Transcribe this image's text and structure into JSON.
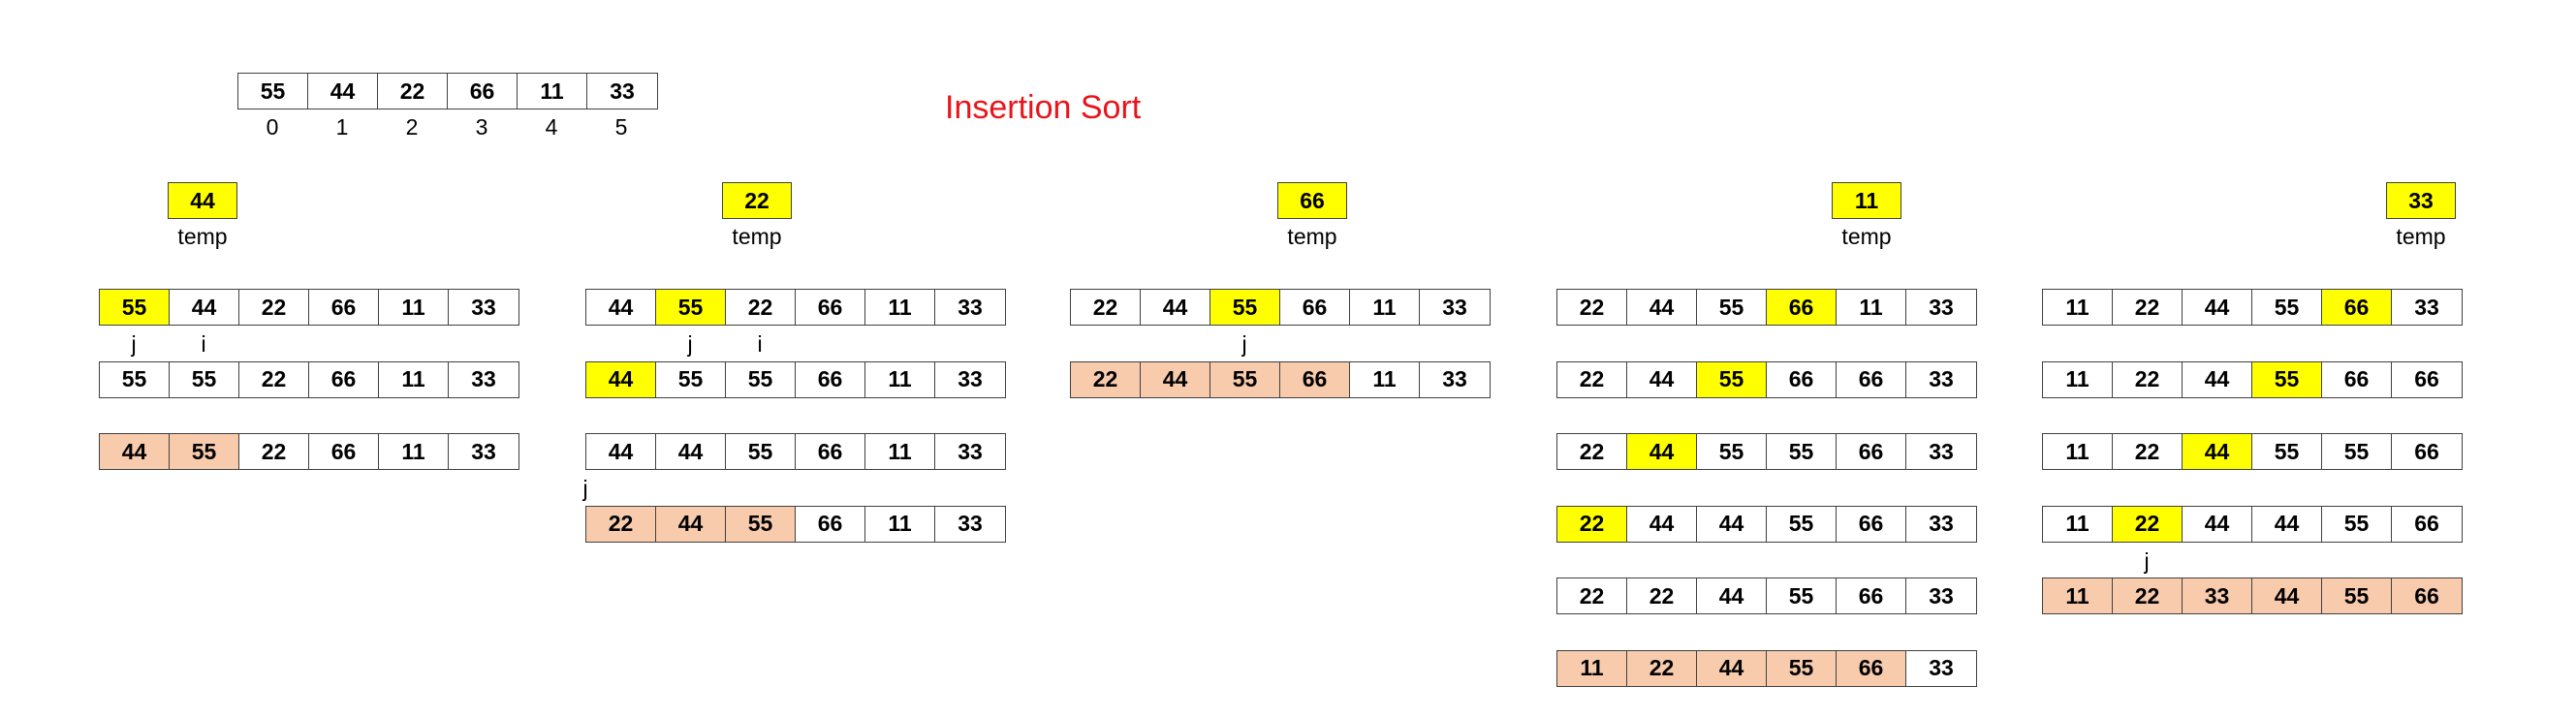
{
  "title": "Insertion Sort",
  "colors": {
    "title": "#e8141a",
    "highlight": "#ffff00",
    "sorted": "#f8cbad",
    "border": "#404040"
  },
  "initial": {
    "values": [
      "55",
      "44",
      "22",
      "66",
      "11",
      "33"
    ],
    "indices": [
      "0",
      "1",
      "2",
      "3",
      "4",
      "5"
    ]
  },
  "temp_label": "temp",
  "steps": [
    {
      "temp": "44",
      "rows": [
        {
          "cells": [
            {
              "v": "55",
              "c": "y"
            },
            {
              "v": "44"
            },
            {
              "v": "22"
            },
            {
              "v": "66"
            },
            {
              "v": "11"
            },
            {
              "v": "33"
            }
          ],
          "markers": [
            {
              "t": "j",
              "col": 0
            },
            {
              "t": "i",
              "col": 1
            }
          ]
        },
        {
          "cells": [
            {
              "v": "55"
            },
            {
              "v": "55"
            },
            {
              "v": "22"
            },
            {
              "v": "66"
            },
            {
              "v": "11"
            },
            {
              "v": "33"
            }
          ]
        },
        {
          "cells": [
            {
              "v": "44",
              "c": "p"
            },
            {
              "v": "55",
              "c": "p"
            },
            {
              "v": "22"
            },
            {
              "v": "66"
            },
            {
              "v": "11"
            },
            {
              "v": "33"
            }
          ]
        }
      ],
      "extra_markers": []
    },
    {
      "temp": "22",
      "rows": [
        {
          "cells": [
            {
              "v": "44"
            },
            {
              "v": "55",
              "c": "y"
            },
            {
              "v": "22"
            },
            {
              "v": "66"
            },
            {
              "v": "11"
            },
            {
              "v": "33"
            }
          ],
          "markers": [
            {
              "t": "j",
              "col": 1
            },
            {
              "t": "i",
              "col": 2
            }
          ]
        },
        {
          "cells": [
            {
              "v": "44",
              "c": "y"
            },
            {
              "v": "55"
            },
            {
              "v": "55"
            },
            {
              "v": "66"
            },
            {
              "v": "11"
            },
            {
              "v": "33"
            }
          ]
        },
        {
          "cells": [
            {
              "v": "44"
            },
            {
              "v": "44"
            },
            {
              "v": "55"
            },
            {
              "v": "66"
            },
            {
              "v": "11"
            },
            {
              "v": "33"
            }
          ]
        },
        {
          "cells": [
            {
              "v": "22",
              "c": "p"
            },
            {
              "v": "44",
              "c": "p"
            },
            {
              "v": "55",
              "c": "p"
            },
            {
              "v": "66"
            },
            {
              "v": "11"
            },
            {
              "v": "33"
            }
          ]
        }
      ],
      "extra_markers": [
        {
          "t": "j",
          "col": -0.5,
          "row": 2
        }
      ]
    },
    {
      "temp": "66",
      "rows": [
        {
          "cells": [
            {
              "v": "22"
            },
            {
              "v": "44"
            },
            {
              "v": "55",
              "c": "y"
            },
            {
              "v": "66"
            },
            {
              "v": "11"
            },
            {
              "v": "33"
            }
          ],
          "markers": [
            {
              "t": "j",
              "col": 2
            }
          ]
        },
        {
          "cells": [
            {
              "v": "22",
              "c": "p"
            },
            {
              "v": "44",
              "c": "p"
            },
            {
              "v": "55",
              "c": "p"
            },
            {
              "v": "66",
              "c": "p"
            },
            {
              "v": "11"
            },
            {
              "v": "33"
            }
          ]
        }
      ],
      "extra_markers": []
    },
    {
      "temp": "11",
      "rows": [
        {
          "cells": [
            {
              "v": "22"
            },
            {
              "v": "44"
            },
            {
              "v": "55"
            },
            {
              "v": "66",
              "c": "y"
            },
            {
              "v": "11"
            },
            {
              "v": "33"
            }
          ]
        },
        {
          "cells": [
            {
              "v": "22"
            },
            {
              "v": "44"
            },
            {
              "v": "55",
              "c": "y"
            },
            {
              "v": "66"
            },
            {
              "v": "66"
            },
            {
              "v": "33"
            }
          ]
        },
        {
          "cells": [
            {
              "v": "22"
            },
            {
              "v": "44",
              "c": "y"
            },
            {
              "v": "55"
            },
            {
              "v": "55"
            },
            {
              "v": "66"
            },
            {
              "v": "33"
            }
          ]
        },
        {
          "cells": [
            {
              "v": "22",
              "c": "y"
            },
            {
              "v": "44"
            },
            {
              "v": "44"
            },
            {
              "v": "55"
            },
            {
              "v": "66"
            },
            {
              "v": "33"
            }
          ]
        },
        {
          "cells": [
            {
              "v": "22"
            },
            {
              "v": "22"
            },
            {
              "v": "44"
            },
            {
              "v": "55"
            },
            {
              "v": "66"
            },
            {
              "v": "33"
            }
          ]
        },
        {
          "cells": [
            {
              "v": "11",
              "c": "p"
            },
            {
              "v": "22",
              "c": "p"
            },
            {
              "v": "44",
              "c": "p"
            },
            {
              "v": "55",
              "c": "p"
            },
            {
              "v": "66",
              "c": "p"
            },
            {
              "v": "33"
            }
          ]
        }
      ],
      "extra_markers": []
    },
    {
      "temp": "33",
      "rows": [
        {
          "cells": [
            {
              "v": "11"
            },
            {
              "v": "22"
            },
            {
              "v": "44"
            },
            {
              "v": "55"
            },
            {
              "v": "66",
              "c": "y"
            },
            {
              "v": "33"
            }
          ]
        },
        {
          "cells": [
            {
              "v": "11"
            },
            {
              "v": "22"
            },
            {
              "v": "44"
            },
            {
              "v": "55",
              "c": "y"
            },
            {
              "v": "66"
            },
            {
              "v": "66"
            }
          ]
        },
        {
          "cells": [
            {
              "v": "11"
            },
            {
              "v": "22"
            },
            {
              "v": "44",
              "c": "y"
            },
            {
              "v": "55"
            },
            {
              "v": "55"
            },
            {
              "v": "66"
            }
          ]
        },
        {
          "cells": [
            {
              "v": "11"
            },
            {
              "v": "22",
              "c": "y"
            },
            {
              "v": "44"
            },
            {
              "v": "44"
            },
            {
              "v": "55"
            },
            {
              "v": "66"
            }
          ],
          "markers": [
            {
              "t": "j",
              "col": 1
            }
          ]
        },
        {
          "cells": [
            {
              "v": "11",
              "c": "p"
            },
            {
              "v": "22",
              "c": "p"
            },
            {
              "v": "33",
              "c": "p"
            },
            {
              "v": "44",
              "c": "p"
            },
            {
              "v": "55",
              "c": "p"
            },
            {
              "v": "66",
              "c": "p"
            }
          ]
        }
      ],
      "extra_markers": []
    }
  ]
}
